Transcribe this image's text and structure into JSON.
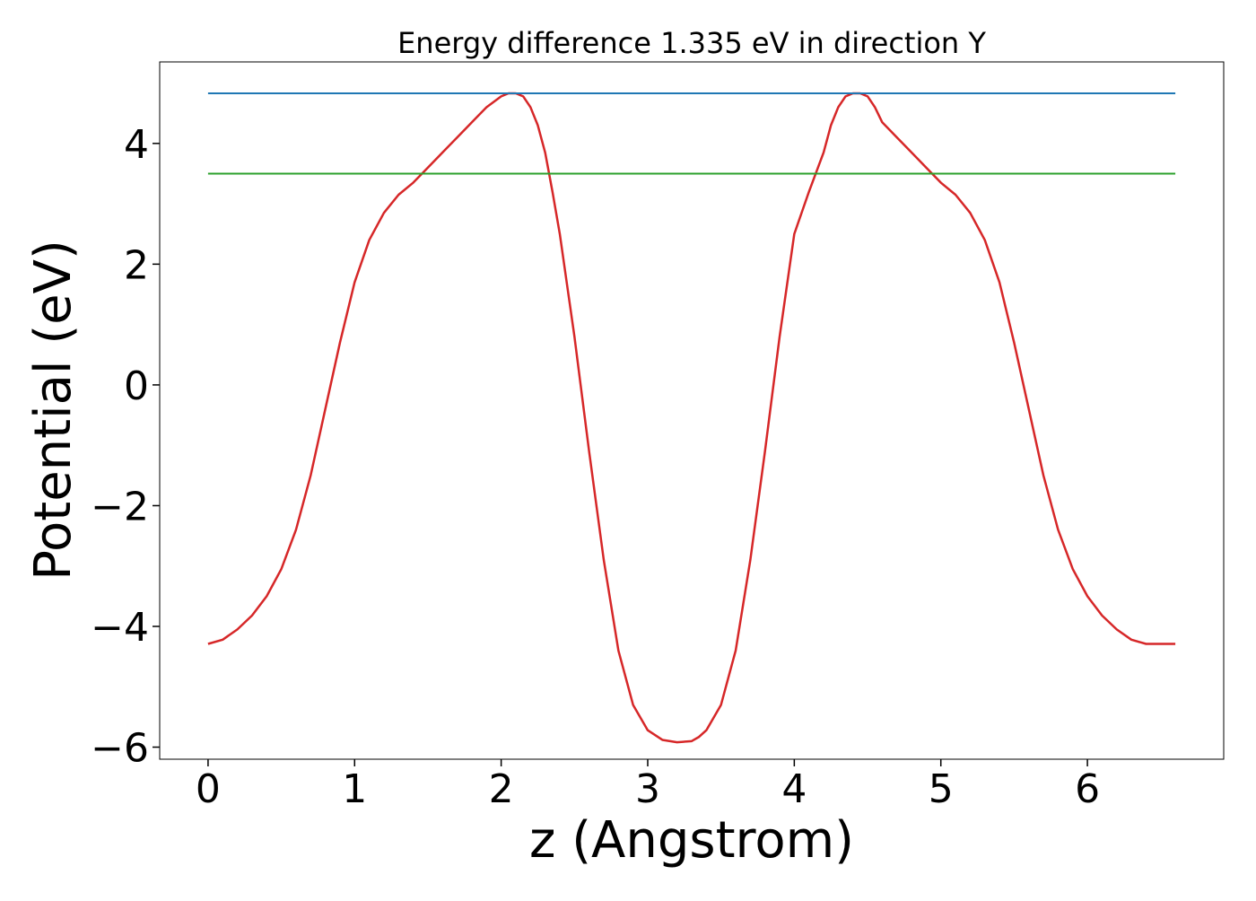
{
  "chart_data": {
    "type": "line",
    "title": "Energy difference 1.335 eV in direction Y",
    "xlabel": "z (Angstrom)",
    "ylabel": "Potential (eV)",
    "xlim": [
      -0.33,
      6.93
    ],
    "ylim": [
      -6.2,
      5.35
    ],
    "x_ticks": [
      0,
      1,
      2,
      3,
      4,
      5,
      6
    ],
    "x_tick_labels": [
      "0",
      "1",
      "2",
      "3",
      "4",
      "5",
      "6"
    ],
    "y_ticks": [
      -6,
      -4,
      -2,
      0,
      2,
      4
    ],
    "y_tick_labels": [
      "−6",
      "−4",
      "−2",
      "0",
      "2",
      "4"
    ],
    "grid": false,
    "series": [
      {
        "color": "#d62728",
        "style": "line",
        "x": [
          0,
          0.1,
          0.2,
          0.3,
          0.4,
          0.5,
          0.6,
          0.7,
          0.8,
          0.9,
          1.0,
          1.1,
          1.2,
          1.3,
          1.4,
          1.5,
          1.6,
          1.7,
          1.8,
          1.9,
          2.0,
          2.05,
          2.1,
          2.15,
          2.2,
          2.25,
          2.3,
          2.35,
          2.4,
          2.5,
          2.6,
          2.7,
          2.8,
          2.9,
          3.0,
          3.1,
          3.2,
          3.3,
          3.35,
          3.4,
          3.5,
          3.6,
          3.7,
          3.8,
          3.9,
          4.0,
          4.1,
          4.2,
          4.25,
          4.3,
          4.35,
          4.4,
          4.45,
          4.5,
          4.55,
          4.6,
          4.7,
          4.8,
          4.9,
          5.0,
          5.1,
          5.2,
          5.3,
          5.4,
          5.5,
          5.6,
          5.7,
          5.8,
          5.9,
          6.0,
          6.1,
          6.2,
          6.3,
          6.4,
          6.5,
          6.6
        ],
        "y": [
          -4.29,
          -4.22,
          -4.05,
          -3.82,
          -3.5,
          -3.05,
          -2.4,
          -1.5,
          -0.4,
          0.7,
          1.7,
          2.4,
          2.85,
          3.15,
          3.35,
          3.6,
          3.85,
          4.1,
          4.35,
          4.6,
          4.78,
          4.83,
          4.83,
          4.78,
          4.6,
          4.3,
          3.85,
          3.2,
          2.5,
          0.8,
          -1.1,
          -2.9,
          -4.4,
          -5.3,
          -5.72,
          -5.88,
          -5.92,
          -5.9,
          -5.83,
          -5.72,
          -5.3,
          -4.4,
          -2.9,
          -1.1,
          0.8,
          2.5,
          3.2,
          3.85,
          4.3,
          4.6,
          4.78,
          4.83,
          4.83,
          4.78,
          4.6,
          4.35,
          4.1,
          3.85,
          3.6,
          3.35,
          3.15,
          2.85,
          2.4,
          1.7,
          0.7,
          -0.4,
          -1.5,
          -2.4,
          -3.05,
          -3.5,
          -3.82,
          -4.05,
          -4.22,
          -4.29,
          -4.29,
          -4.29
        ]
      },
      {
        "color": "#1f77b4",
        "style": "hline",
        "x": [
          0,
          6.6
        ],
        "y": [
          4.83,
          4.83
        ]
      },
      {
        "color": "#2ca02c",
        "style": "hline",
        "x": [
          0,
          6.6
        ],
        "y": [
          3.5,
          3.5
        ]
      }
    ]
  }
}
